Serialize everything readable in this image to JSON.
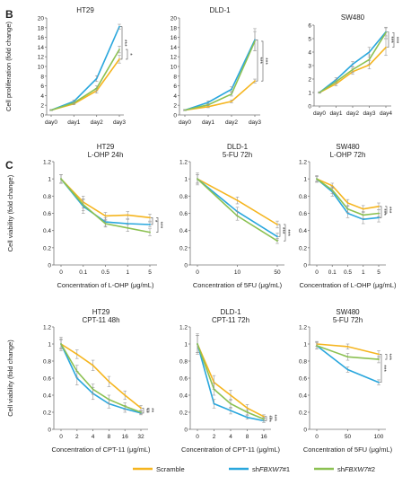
{
  "figure": {
    "panel_labels": {
      "B": "B",
      "C": "C"
    },
    "ylabel_prolif": "Cell proliferation (fold change)",
    "ylabel_viab": "Cell viability (fold change)",
    "legend": [
      {
        "key": "scramble",
        "label": "Scramble",
        "color": "#f5b51f"
      },
      {
        "key": "sh1",
        "label": "shFBXW7#1",
        "prefix": "sh",
        "italic": "FBXW7",
        "suffix": "#1",
        "color": "#2aa7dd"
      },
      {
        "key": "sh2",
        "label": "shFBXW7#2",
        "prefix": "sh",
        "italic": "FBXW7",
        "suffix": "#2",
        "color": "#8cc152"
      }
    ]
  },
  "chart_data": [
    {
      "id": "b1",
      "type": "line",
      "title": "HT29",
      "subtitle": "",
      "categories": [
        "day0",
        "day1",
        "day2",
        "day3"
      ],
      "ylim": [
        0,
        20
      ],
      "yticks": [
        0,
        2,
        4,
        6,
        8,
        10,
        12,
        14,
        16,
        18,
        20
      ],
      "grid": false,
      "xlabel": "",
      "ylabel": "Cell proliferation (fold change)",
      "series": [
        {
          "key": "scramble",
          "values": [
            1,
            2.3,
            5,
            11.5
          ],
          "errors": [
            0.1,
            0.2,
            0.5,
            0.8
          ]
        },
        {
          "key": "sh1",
          "values": [
            1,
            2.8,
            7.5,
            18.2
          ],
          "errors": [
            0.1,
            0.3,
            0.6,
            0.5
          ]
        },
        {
          "key": "sh2",
          "values": [
            1,
            2.5,
            5.5,
            13.5
          ],
          "errors": [
            0.1,
            0.2,
            0.5,
            0.7
          ]
        }
      ],
      "annotations": [
        "***",
        "*"
      ]
    },
    {
      "id": "b2",
      "type": "line",
      "title": "DLD-1",
      "subtitle": "",
      "categories": [
        "day0",
        "day1",
        "day2",
        "day3"
      ],
      "ylim": [
        0,
        20
      ],
      "yticks": [
        0,
        2,
        4,
        6,
        8,
        10,
        12,
        14,
        16,
        18,
        20
      ],
      "grid": false,
      "xlabel": "",
      "ylabel": "",
      "series": [
        {
          "key": "scramble",
          "values": [
            1,
            1.7,
            2.8,
            7
          ],
          "errors": [
            0.1,
            0.2,
            0.3,
            0.4
          ]
        },
        {
          "key": "sh1",
          "values": [
            1,
            2.6,
            5.3,
            15.5
          ],
          "errors": [
            0.1,
            0.3,
            0.5,
            2.3
          ]
        },
        {
          "key": "sh2",
          "values": [
            1,
            2.1,
            4.3,
            15.2
          ],
          "errors": [
            0.1,
            0.2,
            0.4,
            2.0
          ]
        }
      ],
      "annotations": [
        "***",
        "***"
      ]
    },
    {
      "id": "b3",
      "type": "line",
      "title": "SW480",
      "subtitle": "",
      "categories": [
        "day0",
        "day1",
        "day2",
        "day3",
        "day4"
      ],
      "ylim": [
        0,
        6
      ],
      "yticks": [
        0,
        1,
        2,
        3,
        4,
        5,
        6
      ],
      "grid": false,
      "xlabel": "",
      "ylabel": "",
      "series": [
        {
          "key": "scramble",
          "values": [
            1,
            1.65,
            2.55,
            3.05,
            4.35
          ],
          "errors": [
            0.05,
            0.15,
            0.2,
            0.3,
            0.6
          ]
        },
        {
          "key": "sh1",
          "values": [
            1,
            1.95,
            3.1,
            4.0,
            5.5
          ],
          "errors": [
            0.05,
            0.15,
            0.2,
            0.35,
            0.3
          ]
        },
        {
          "key": "sh2",
          "values": [
            1,
            1.8,
            2.7,
            3.45,
            5.45
          ],
          "errors": [
            0.05,
            0.15,
            0.2,
            0.35,
            0.4
          ]
        }
      ],
      "annotations": [
        "***",
        "***"
      ]
    },
    {
      "id": "c1",
      "type": "line",
      "title": "HT29",
      "subtitle": "L-OHP 24h",
      "categories": [
        "0",
        "0.1",
        "0.5",
        "1",
        "5"
      ],
      "ylim": [
        0,
        1.2
      ],
      "yticks": [
        0,
        0.2,
        0.4,
        0.6,
        0.8,
        1,
        1.2
      ],
      "grid": false,
      "xlabel": "Concentration of L-OHP (μg/mL)",
      "ylabel": "Cell viability (fold change)",
      "series": [
        {
          "key": "scramble",
          "values": [
            1,
            0.73,
            0.57,
            0.58,
            0.55
          ],
          "errors": [
            0.05,
            0.07,
            0.04,
            0.04,
            0.04
          ]
        },
        {
          "key": "sh1",
          "values": [
            1,
            0.68,
            0.5,
            0.48,
            0.47
          ],
          "errors": [
            0.05,
            0.08,
            0.05,
            0.05,
            0.03
          ]
        },
        {
          "key": "sh2",
          "values": [
            1,
            0.7,
            0.48,
            0.43,
            0.38
          ],
          "errors": [
            0.05,
            0.07,
            0.04,
            0.04,
            0.04
          ]
        }
      ],
      "annotations": [
        "*",
        "***"
      ]
    },
    {
      "id": "c2",
      "type": "line",
      "title": "DLD-1",
      "subtitle": "5-FU 72h",
      "categories": [
        "0",
        "10",
        "50"
      ],
      "ylim": [
        0,
        1.2
      ],
      "yticks": [
        0,
        0.2,
        0.4,
        0.6,
        0.8,
        1,
        1.2
      ],
      "grid": false,
      "xlabel": "Concentration of 5FU (μg/mL)",
      "ylabel": "",
      "series": [
        {
          "key": "scramble",
          "values": [
            1,
            0.75,
            0.47
          ],
          "errors": [
            0.05,
            0.04,
            0.04
          ]
        },
        {
          "key": "sh1",
          "values": [
            1,
            0.62,
            0.33
          ],
          "errors": [
            0.07,
            0.05,
            0.04
          ]
        },
        {
          "key": "sh2",
          "values": [
            1,
            0.57,
            0.28
          ],
          "errors": [
            0.05,
            0.05,
            0.03
          ]
        }
      ],
      "annotations": [
        "***",
        "***"
      ]
    },
    {
      "id": "c3",
      "type": "line",
      "title": "SW480",
      "subtitle": "L-OHP 72h",
      "categories": [
        "0",
        "0.1",
        "0.5",
        "1",
        "5"
      ],
      "ylim": [
        0,
        1.2
      ],
      "yticks": [
        0,
        0.2,
        0.4,
        0.6,
        0.8,
        1,
        1.2
      ],
      "grid": false,
      "xlabel": "Concentration of L-OHP (μg/mL)",
      "ylabel": "",
      "series": [
        {
          "key": "scramble",
          "values": [
            1,
            0.92,
            0.72,
            0.65,
            0.68
          ],
          "errors": [
            0.03,
            0.03,
            0.04,
            0.04,
            0.04
          ]
        },
        {
          "key": "sh1",
          "values": [
            1,
            0.85,
            0.6,
            0.53,
            0.55
          ],
          "errors": [
            0.04,
            0.05,
            0.05,
            0.05,
            0.05
          ]
        },
        {
          "key": "sh2",
          "values": [
            1,
            0.87,
            0.65,
            0.58,
            0.6
          ],
          "errors": [
            0.03,
            0.04,
            0.04,
            0.04,
            0.04
          ]
        }
      ],
      "annotations": [
        "***",
        "***"
      ]
    },
    {
      "id": "c4",
      "type": "line",
      "title": "HT29",
      "subtitle": "CPT-11 48h",
      "categories": [
        "0",
        "2",
        "4",
        "8",
        "16",
        "32"
      ],
      "ylim": [
        0,
        1.2
      ],
      "yticks": [
        0,
        0.2,
        0.4,
        0.6,
        0.8,
        1,
        1.2
      ],
      "grid": false,
      "xlabel": "Concentration of CPT-11 (μg/mL)",
      "ylabel": "Cell viability (fold change)",
      "series": [
        {
          "key": "scramble",
          "values": [
            1,
            0.88,
            0.75,
            0.56,
            0.4,
            0.25
          ],
          "errors": [
            0.05,
            0.05,
            0.06,
            0.06,
            0.05,
            0.03
          ]
        },
        {
          "key": "sh1",
          "values": [
            1,
            0.6,
            0.42,
            0.3,
            0.24,
            0.19
          ],
          "errors": [
            0.08,
            0.08,
            0.07,
            0.05,
            0.04,
            0.02
          ]
        },
        {
          "key": "sh2",
          "values": [
            1,
            0.68,
            0.47,
            0.35,
            0.27,
            0.2
          ],
          "errors": [
            0.06,
            0.07,
            0.06,
            0.05,
            0.04,
            0.02
          ]
        }
      ],
      "annotations": [
        "**",
        "**"
      ]
    },
    {
      "id": "c5",
      "type": "line",
      "title": "DLD-1",
      "subtitle": "CPT-11 72h",
      "categories": [
        "0",
        "2",
        "4",
        "8",
        "16"
      ],
      "ylim": [
        0,
        1.2
      ],
      "yticks": [
        0,
        0.2,
        0.4,
        0.6,
        0.8,
        1,
        1.2
      ],
      "grid": false,
      "xlabel": "Concentration of CPT-11 (μg/mL)",
      "ylabel": "",
      "series": [
        {
          "key": "scramble",
          "values": [
            1,
            0.55,
            0.4,
            0.25,
            0.15
          ],
          "errors": [
            0.12,
            0.08,
            0.06,
            0.04,
            0.02
          ]
        },
        {
          "key": "sh1",
          "values": [
            1,
            0.3,
            0.22,
            0.14,
            0.1
          ],
          "errors": [
            0.1,
            0.05,
            0.04,
            0.02,
            0.02
          ]
        },
        {
          "key": "sh2",
          "values": [
            1,
            0.47,
            0.3,
            0.2,
            0.12
          ],
          "errors": [
            0.1,
            0.07,
            0.05,
            0.03,
            0.02
          ]
        }
      ],
      "annotations": [
        "***",
        "***"
      ]
    },
    {
      "id": "c6",
      "type": "line",
      "title": "SW480",
      "subtitle": "5-FU 72h",
      "categories": [
        "0",
        "50",
        "100"
      ],
      "ylim": [
        0,
        1.2
      ],
      "yticks": [
        0,
        0.2,
        0.4,
        0.6,
        0.8,
        1,
        1.2
      ],
      "grid": false,
      "xlabel": "Concentration of 5FU (μg/mL)",
      "ylabel": "",
      "series": [
        {
          "key": "scramble",
          "values": [
            1,
            0.97,
            0.88
          ],
          "errors": [
            0.03,
            0.03,
            0.04
          ]
        },
        {
          "key": "sh1",
          "values": [
            0.98,
            0.7,
            0.55
          ],
          "errors": [
            0.04,
            0.03,
            0.03
          ]
        },
        {
          "key": "sh2",
          "values": [
            0.98,
            0.85,
            0.82
          ],
          "errors": [
            0.04,
            0.04,
            0.04
          ]
        }
      ],
      "annotations": [
        "***",
        "***"
      ]
    }
  ]
}
